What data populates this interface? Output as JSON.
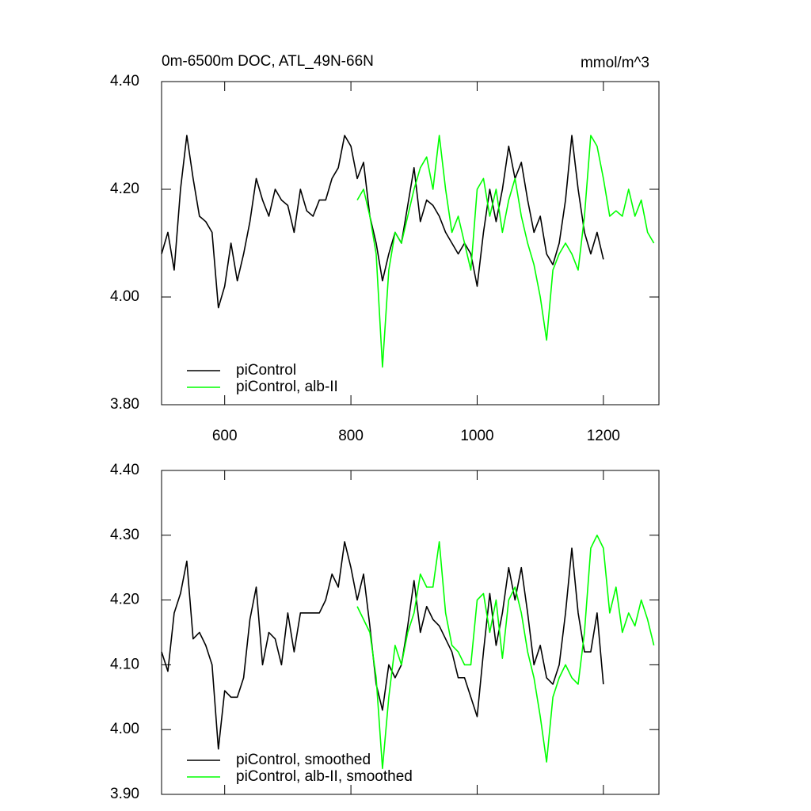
{
  "chart_data": [
    {
      "type": "line",
      "title": "0m-6500m DOC, ATL_49N-66N",
      "units": "mmol/m^3",
      "xlim": [
        500,
        1288
      ],
      "xticks": [
        600,
        800,
        1000,
        1200
      ],
      "show_xtick_labels": true,
      "ylim": [
        3.8,
        4.4
      ],
      "yticks": [
        {
          "value": 3.8,
          "label": "3.80"
        },
        {
          "value": 4.0,
          "label": "4.00"
        },
        {
          "value": 4.2,
          "label": "4.20"
        },
        {
          "value": 4.4,
          "label": "4.40"
        }
      ],
      "legend": "lower left",
      "series": [
        {
          "name": "piControl",
          "color": "#000000",
          "x": [
            500,
            510,
            520,
            530,
            540,
            550,
            560,
            570,
            580,
            590,
            600,
            610,
            620,
            630,
            640,
            650,
            660,
            670,
            680,
            690,
            700,
            710,
            720,
            730,
            740,
            750,
            760,
            770,
            780,
            790,
            800,
            810,
            820,
            830,
            840,
            850,
            860,
            870,
            880,
            890,
            900,
            910,
            920,
            930,
            940,
            950,
            960,
            970,
            980,
            990,
            1000,
            1010,
            1020,
            1030,
            1040,
            1050,
            1060,
            1070,
            1080,
            1090,
            1100,
            1110,
            1120,
            1130,
            1140,
            1150,
            1160,
            1170,
            1180,
            1190,
            1200
          ],
          "values": [
            4.08,
            4.12,
            4.05,
            4.2,
            4.3,
            4.22,
            4.15,
            4.14,
            4.12,
            3.98,
            4.02,
            4.1,
            4.03,
            4.08,
            4.14,
            4.22,
            4.18,
            4.15,
            4.2,
            4.18,
            4.17,
            4.12,
            4.2,
            4.16,
            4.15,
            4.18,
            4.18,
            4.22,
            4.24,
            4.3,
            4.28,
            4.22,
            4.25,
            4.15,
            4.1,
            4.03,
            4.08,
            4.12,
            4.1,
            4.17,
            4.24,
            4.14,
            4.18,
            4.17,
            4.15,
            4.12,
            4.1,
            4.08,
            4.1,
            4.08,
            4.02,
            4.12,
            4.2,
            4.14,
            4.2,
            4.28,
            4.22,
            4.25,
            4.18,
            4.12,
            4.15,
            4.08,
            4.06,
            4.1,
            4.18,
            4.3,
            4.2,
            4.12,
            4.08,
            4.12,
            4.07
          ]
        },
        {
          "name": "piControl, alb-II",
          "color": "#00ff00",
          "x": [
            810,
            820,
            830,
            840,
            850,
            860,
            870,
            880,
            890,
            900,
            910,
            920,
            930,
            940,
            950,
            960,
            970,
            980,
            990,
            1000,
            1010,
            1020,
            1030,
            1040,
            1050,
            1060,
            1070,
            1080,
            1090,
            1100,
            1110,
            1120,
            1130,
            1140,
            1150,
            1160,
            1170,
            1180,
            1190,
            1200,
            1210,
            1220,
            1230,
            1240,
            1250,
            1260,
            1270,
            1280
          ],
          "values": [
            4.18,
            4.2,
            4.15,
            4.08,
            3.87,
            4.05,
            4.12,
            4.1,
            4.15,
            4.2,
            4.24,
            4.26,
            4.2,
            4.3,
            4.2,
            4.12,
            4.15,
            4.1,
            4.05,
            4.2,
            4.22,
            4.15,
            4.2,
            4.12,
            4.18,
            4.22,
            4.15,
            4.1,
            4.06,
            4.0,
            3.92,
            4.05,
            4.08,
            4.1,
            4.08,
            4.05,
            4.15,
            4.3,
            4.28,
            4.22,
            4.15,
            4.16,
            4.15,
            4.2,
            4.15,
            4.18,
            4.12,
            4.1
          ]
        }
      ]
    },
    {
      "type": "line",
      "xlim": [
        500,
        1288
      ],
      "xticks": [
        600,
        800,
        1000,
        1200
      ],
      "show_xtick_labels": false,
      "ylim": [
        3.9,
        4.4
      ],
      "yticks": [
        {
          "value": 3.9,
          "label": "3.90"
        },
        {
          "value": 4.0,
          "label": "4.00"
        },
        {
          "value": 4.1,
          "label": "4.10"
        },
        {
          "value": 4.2,
          "label": "4.20"
        },
        {
          "value": 4.3,
          "label": "4.30"
        },
        {
          "value": 4.4,
          "label": "4.40"
        }
      ],
      "legend": "lower left",
      "series": [
        {
          "name": "piControl, smoothed",
          "color": "#000000",
          "x": [
            500,
            510,
            520,
            530,
            540,
            550,
            560,
            570,
            580,
            590,
            600,
            610,
            620,
            630,
            640,
            650,
            660,
            670,
            680,
            690,
            700,
            710,
            720,
            730,
            740,
            750,
            760,
            770,
            780,
            790,
            800,
            810,
            820,
            830,
            840,
            850,
            860,
            870,
            880,
            890,
            900,
            910,
            920,
            930,
            940,
            950,
            960,
            970,
            980,
            990,
            1000,
            1010,
            1020,
            1030,
            1040,
            1050,
            1060,
            1070,
            1080,
            1090,
            1100,
            1110,
            1120,
            1130,
            1140,
            1150,
            1160,
            1170,
            1180,
            1190,
            1200
          ],
          "values": [
            4.12,
            4.09,
            4.18,
            4.21,
            4.26,
            4.14,
            4.15,
            4.13,
            4.1,
            3.97,
            4.06,
            4.05,
            4.05,
            4.08,
            4.17,
            4.22,
            4.1,
            4.15,
            4.14,
            4.1,
            4.18,
            4.12,
            4.18,
            4.18,
            4.18,
            4.18,
            4.2,
            4.24,
            4.22,
            4.29,
            4.25,
            4.2,
            4.24,
            4.16,
            4.07,
            4.03,
            4.1,
            4.08,
            4.1,
            4.16,
            4.23,
            4.15,
            4.19,
            4.17,
            4.16,
            4.14,
            4.12,
            4.08,
            4.08,
            4.05,
            4.02,
            4.12,
            4.21,
            4.13,
            4.18,
            4.25,
            4.2,
            4.25,
            4.18,
            4.1,
            4.13,
            4.08,
            4.07,
            4.1,
            4.18,
            4.28,
            4.18,
            4.12,
            4.12,
            4.18,
            4.07
          ]
        },
        {
          "name": "piControl, alb-II, smoothed",
          "color": "#00ff00",
          "x": [
            810,
            820,
            830,
            840,
            850,
            860,
            870,
            880,
            890,
            900,
            910,
            920,
            930,
            940,
            950,
            960,
            970,
            980,
            990,
            1000,
            1010,
            1020,
            1030,
            1040,
            1050,
            1060,
            1070,
            1080,
            1090,
            1100,
            1110,
            1120,
            1130,
            1140,
            1150,
            1160,
            1170,
            1180,
            1190,
            1200,
            1210,
            1220,
            1230,
            1240,
            1250,
            1260,
            1270,
            1280
          ],
          "values": [
            4.19,
            4.17,
            4.15,
            4.08,
            3.94,
            4.05,
            4.13,
            4.1,
            4.15,
            4.18,
            4.24,
            4.22,
            4.22,
            4.29,
            4.18,
            4.13,
            4.12,
            4.1,
            4.1,
            4.2,
            4.21,
            4.15,
            4.2,
            4.11,
            4.2,
            4.22,
            4.18,
            4.12,
            4.08,
            4.02,
            3.95,
            4.05,
            4.08,
            4.1,
            4.08,
            4.07,
            4.15,
            4.28,
            4.3,
            4.28,
            4.18,
            4.22,
            4.15,
            4.18,
            4.16,
            4.2,
            4.17,
            4.13
          ]
        }
      ]
    }
  ]
}
